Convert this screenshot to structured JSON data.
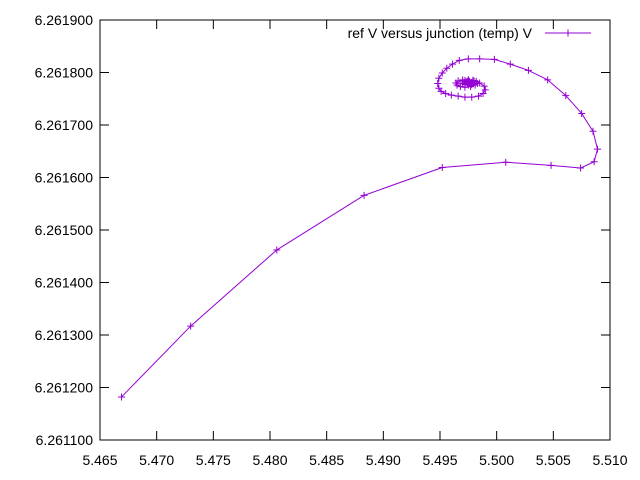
{
  "chart_data": {
    "type": "line",
    "title": "",
    "xlabel": "",
    "ylabel": "",
    "xlim": [
      5.465,
      5.51
    ],
    "ylim": [
      6.2611,
      6.2619
    ],
    "xticks": [
      5.465,
      5.47,
      5.475,
      5.48,
      5.485,
      5.49,
      5.495,
      5.5,
      5.505,
      5.51
    ],
    "xtick_labels": [
      "5.465",
      "5.470",
      "5.475",
      "5.480",
      "5.485",
      "5.490",
      "5.495",
      "5.500",
      "5.505",
      "5.510"
    ],
    "yticks": [
      6.2611,
      6.2612,
      6.2613,
      6.2614,
      6.2615,
      6.2616,
      6.2617,
      6.2618,
      6.2619
    ],
    "ytick_labels": [
      "6.261100",
      "6.261200",
      "6.261300",
      "6.261400",
      "6.261500",
      "6.261600",
      "6.261700",
      "6.261800",
      "6.261900"
    ],
    "grid": false,
    "legend_position": "top-right",
    "series": [
      {
        "name": "ref V versus junction (temp) V",
        "color": "#9400d3",
        "marker": "plus",
        "x": [
          5.4669,
          5.473,
          5.4806,
          5.4883,
          5.4952,
          5.5008,
          5.5048,
          5.5074,
          5.5086,
          5.5089,
          5.5085,
          5.5075,
          5.5061,
          5.5045,
          5.5028,
          5.5012,
          5.4998,
          5.4985,
          5.4975,
          5.4967,
          5.4961,
          5.4956,
          5.4952,
          5.4949,
          5.4948,
          5.4949,
          5.4951,
          5.4955,
          5.496,
          5.4966,
          5.4972,
          5.4978,
          5.4984,
          5.4988,
          5.499,
          5.4989,
          5.4985,
          5.498,
          5.4975,
          5.497,
          5.4966,
          5.4964,
          5.4965,
          5.4968,
          5.4972,
          5.4977,
          5.4981,
          5.4983,
          5.4982,
          5.4979,
          5.4975,
          5.4972,
          5.497,
          5.497,
          5.4972,
          5.4975,
          5.4978,
          5.4979,
          5.4978,
          5.4976,
          5.4974,
          5.4973,
          5.4974,
          5.4976,
          5.4977,
          5.4977
        ],
        "y": [
          6.261182,
          6.261317,
          6.261462,
          6.261566,
          6.261619,
          6.261629,
          6.261623,
          6.261618,
          6.26163,
          6.261654,
          6.261688,
          6.261722,
          6.261756,
          6.261786,
          6.261804,
          6.261816,
          6.261825,
          6.261826,
          6.261826,
          6.261823,
          6.261816,
          6.261808,
          6.261799,
          6.261789,
          6.261779,
          6.26177,
          6.261764,
          6.26176,
          6.261757,
          6.261755,
          6.261753,
          6.261753,
          6.261755,
          6.26176,
          6.261767,
          6.261774,
          6.26178,
          6.261784,
          6.261786,
          6.261786,
          6.261784,
          6.26178,
          6.261776,
          6.261773,
          6.261772,
          6.261773,
          6.261776,
          6.261779,
          6.261783,
          6.261785,
          6.261786,
          6.261785,
          6.261782,
          6.261779,
          6.261777,
          6.261776,
          6.261777,
          6.261779,
          6.261781,
          6.261783,
          6.261783,
          6.261782,
          6.26178,
          6.261779,
          6.261779,
          6.26178
        ]
      }
    ]
  }
}
